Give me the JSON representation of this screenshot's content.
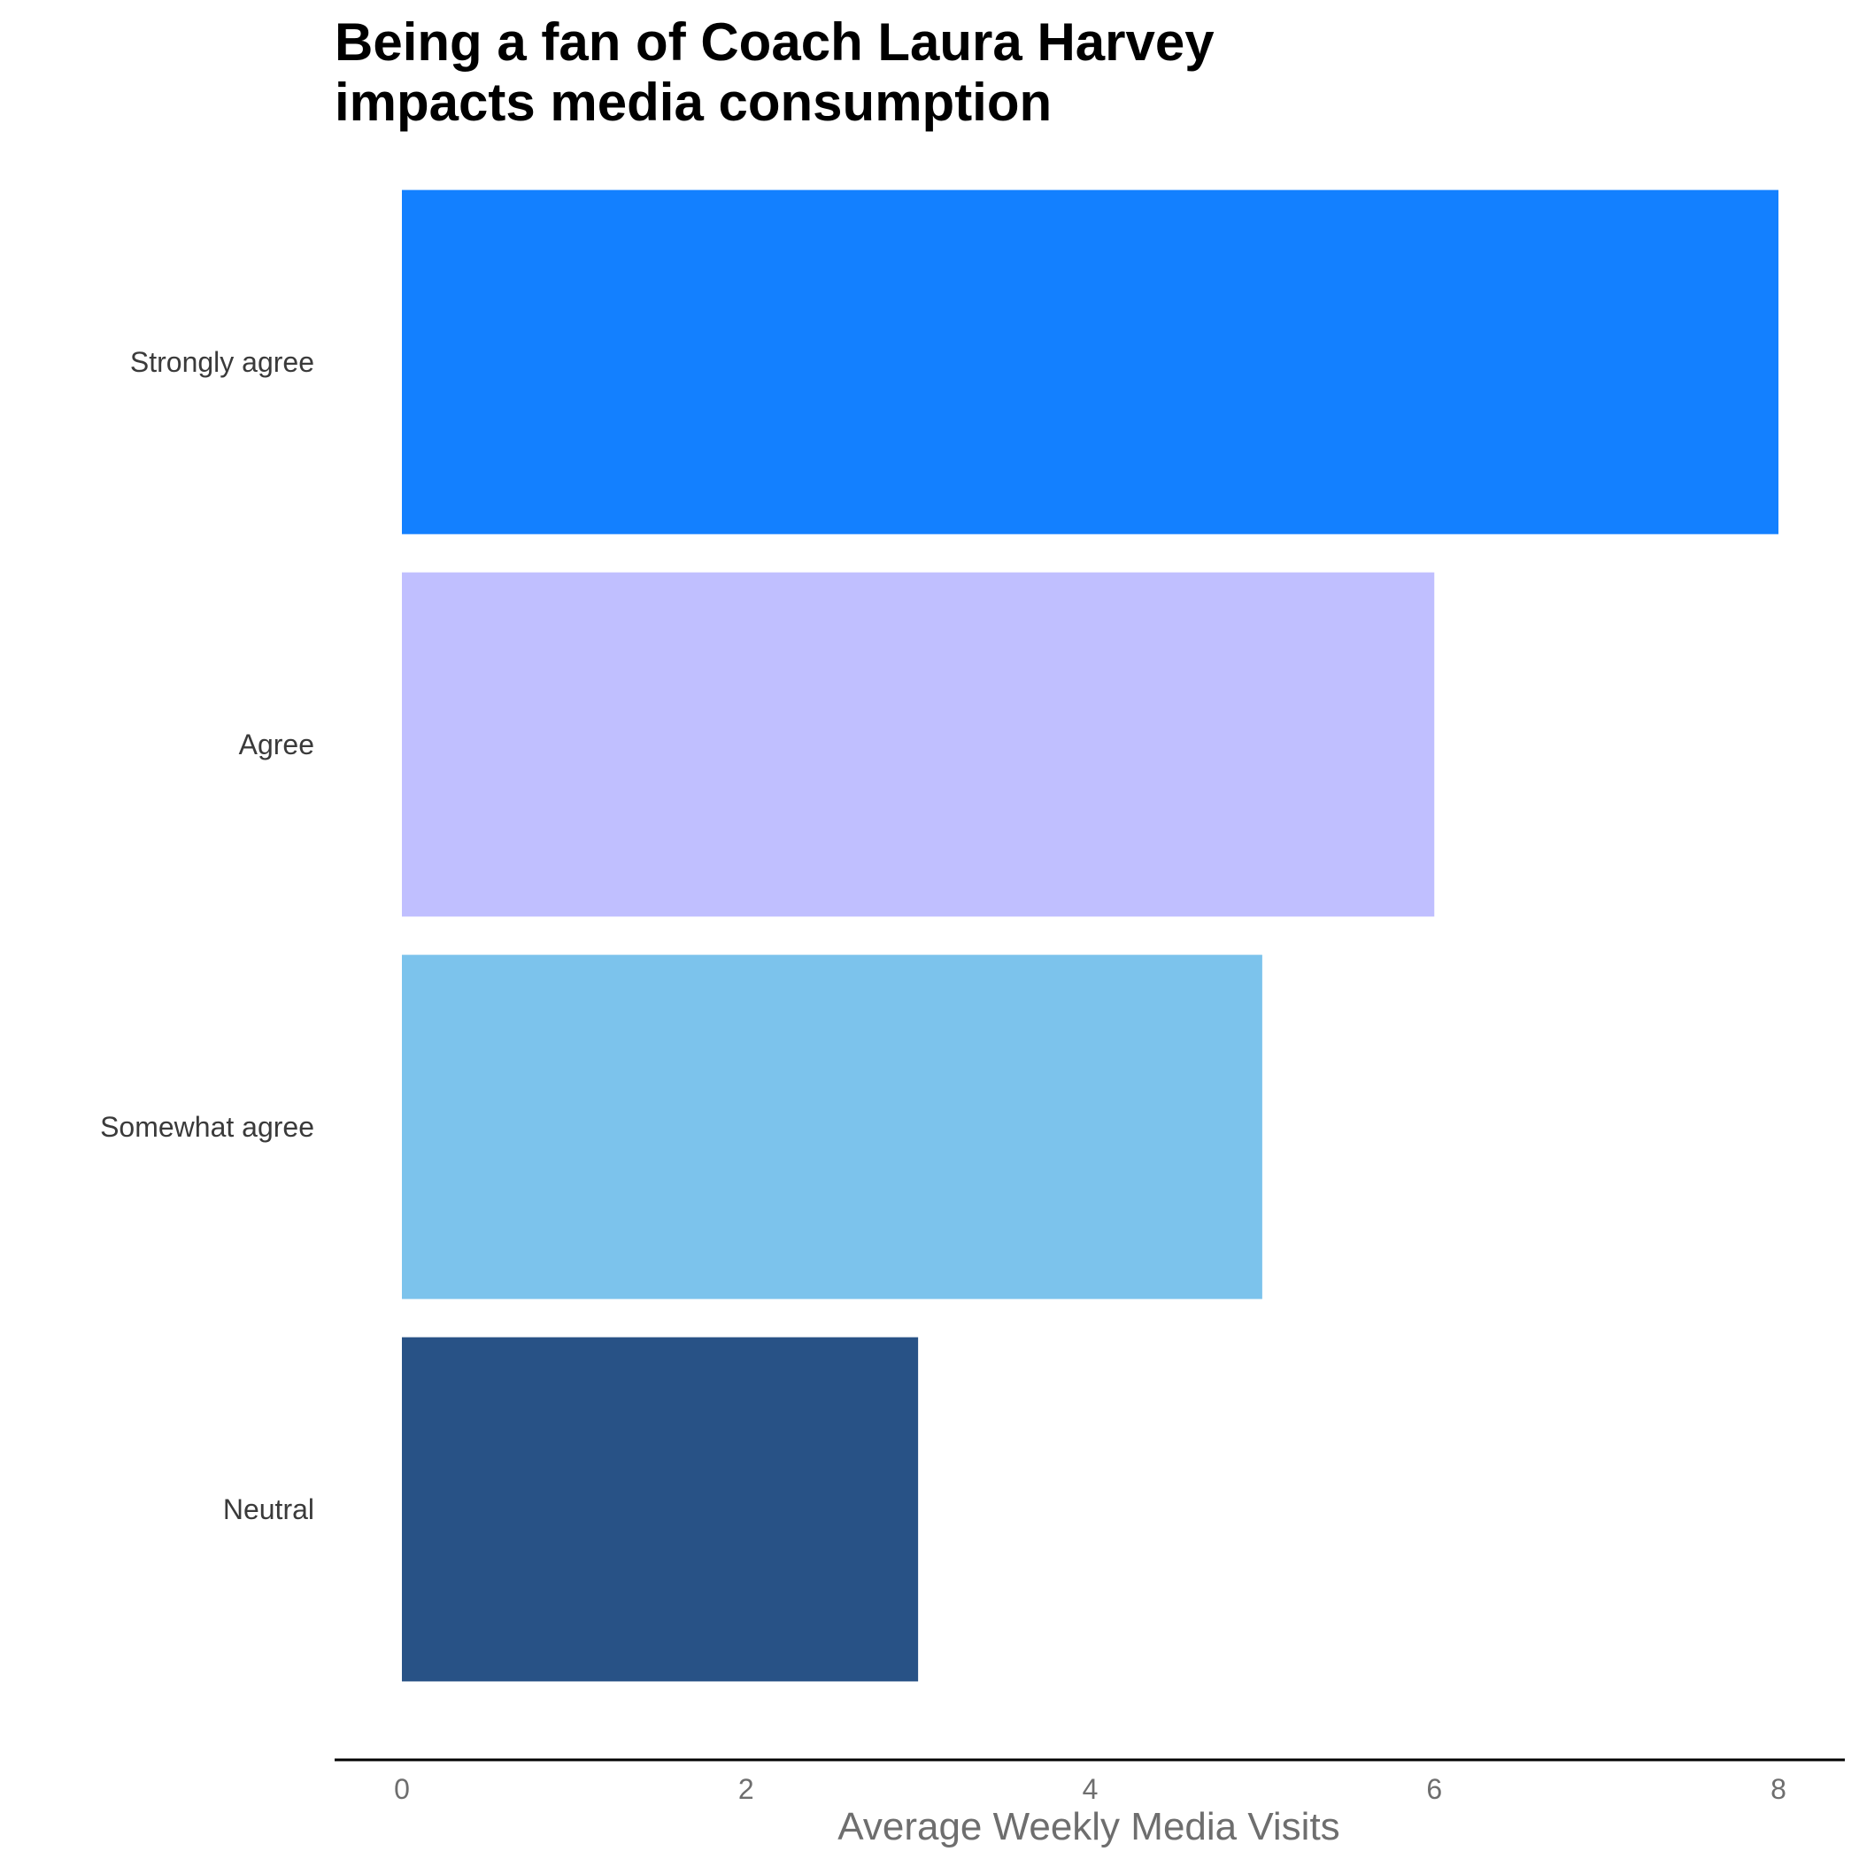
{
  "chart_data": {
    "type": "bar",
    "orientation": "horizontal",
    "title_lines": [
      "Being a fan of Coach Laura Harvey",
      "impacts media consumption"
    ],
    "xlabel": "Average Weekly Media Visits",
    "ylabel": "",
    "categories": [
      "Strongly agree",
      "Agree",
      "Somewhat agree",
      "Neutral"
    ],
    "values": [
      8,
      6,
      5,
      3
    ],
    "colors": [
      "#1380ff",
      "#c0bfff",
      "#7cc3ec",
      "#285286"
    ],
    "xlim": [
      0,
      8
    ],
    "xticks": [
      0,
      2,
      4,
      6,
      8
    ],
    "xtick_labels": [
      "0",
      "2",
      "4",
      "6",
      "8"
    ],
    "grid": false,
    "legend": "none"
  }
}
